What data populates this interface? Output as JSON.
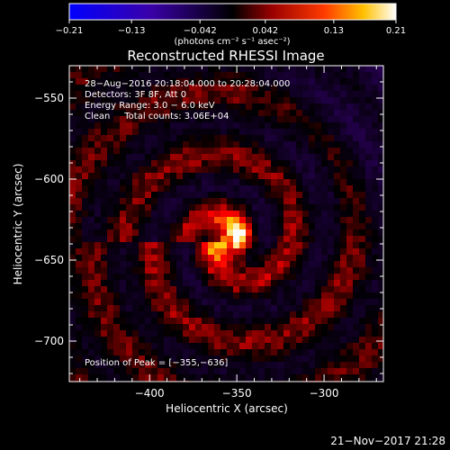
{
  "chart_data": {
    "type": "heatmap",
    "title": "Reconstructed RHESSI Image",
    "xlabel": "Heliocentric X (arcsec)",
    "ylabel": "Heliocentric Y (arcsec)",
    "xlim": [
      -446,
      -266
    ],
    "ylim": [
      -725,
      -530
    ],
    "x_ticks": [
      -400,
      -350,
      -300
    ],
    "x_tick_labels": [
      "−400",
      "−350",
      "−300"
    ],
    "y_ticks": [
      -550,
      -600,
      -650,
      -700
    ],
    "y_tick_labels": [
      "−550",
      "−600",
      "−650",
      "−700"
    ],
    "colorbar": {
      "colormap": "hot-diverging",
      "range": [
        -0.21,
        0.21
      ],
      "ticks": [
        -0.21,
        -0.13,
        -0.042,
        0.042,
        0.13,
        0.21
      ],
      "tick_labels": [
        "−0.21",
        "−0.13",
        "−0.042",
        "0.042",
        "0.13",
        "0.21"
      ],
      "units": "(photons cm⁻² s⁻¹ asec⁻²)"
    },
    "annotations": [
      "28−Aug−2016 20:18:04.000 to 20:28:04.000",
      "Detectors: 3F 8F, Att 0",
      "Energy Range: 3.0 − 6.0 keV",
      "Clean     Total counts: 3.06E+04"
    ],
    "peak_label": "Position of Peak = [−355,−636]",
    "peak": {
      "x": -355,
      "y": -636
    },
    "footer": "21−Nov−2017 21:28"
  }
}
